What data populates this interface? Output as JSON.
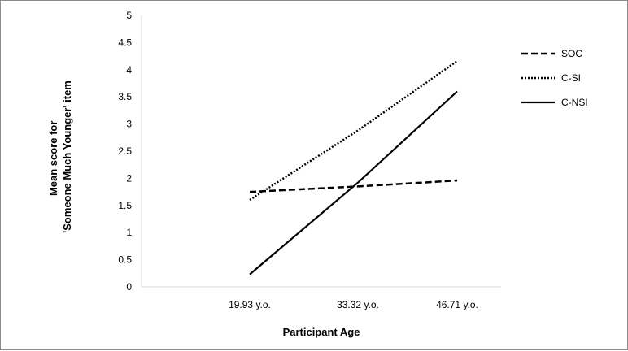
{
  "chart_data": {
    "type": "line",
    "categories": [
      "19.93 y.o.",
      "33.32 y.o.",
      "46.71 y.o."
    ],
    "series": [
      {
        "name": "SOC",
        "values": [
          1.75,
          1.85,
          1.96
        ],
        "style": "dashed"
      },
      {
        "name": "C-SI",
        "values": [
          1.6,
          2.88,
          4.16
        ],
        "style": "dotted"
      },
      {
        "name": "C-NSI",
        "values": [
          0.23,
          1.92,
          3.6
        ],
        "style": "solid"
      }
    ],
    "title": "",
    "xlabel": "Participant Age",
    "ylabel": [
      "Mean score for",
      "'Someone Much Younger' item"
    ],
    "ylim": [
      0,
      5
    ],
    "yticks": [
      "0",
      "0.5",
      "1",
      "1.5",
      "2",
      "2.5",
      "3",
      "3.5",
      "4",
      "4.5",
      "5"
    ],
    "grid": false,
    "legend": "right",
    "line_color": "#000000"
  }
}
